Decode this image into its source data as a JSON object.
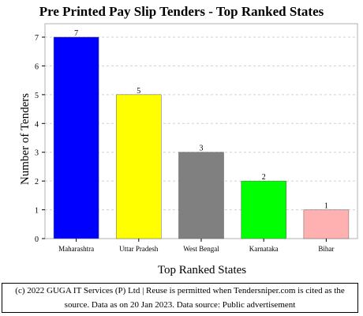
{
  "chart_data": {
    "type": "bar",
    "title": "Pre Printed Pay Slip Tenders - Top Ranked States",
    "xlabel": "Top Ranked States",
    "ylabel": "Number of Tenders",
    "categories": [
      "Maharashtra",
      "Uttar Pradesh",
      "West Bengal",
      "Karnataka",
      "Bihar"
    ],
    "values": [
      7,
      5,
      3,
      2,
      1
    ],
    "colors": [
      "#0000ff",
      "#ffff00",
      "#808080",
      "#00ff00",
      "#ffb0b0"
    ],
    "ylim": [
      0,
      7
    ],
    "yticks": [
      0,
      1,
      2,
      3,
      4,
      5,
      6,
      7
    ],
    "grid": true,
    "legend": "none"
  },
  "footer": {
    "text": "(c) 2022 GUGA IT Services (P) Ltd | Reuse is permitted when Tendersniper.com is cited as the source. Data as on 20 Jan 2023. Data source: Public advertisement"
  }
}
